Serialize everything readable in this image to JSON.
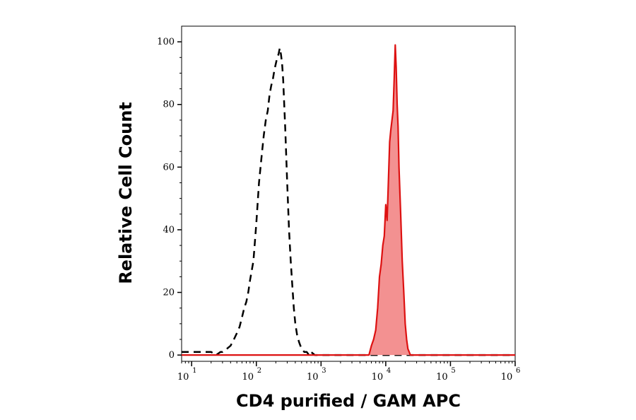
{
  "chart_data": {
    "type": "area",
    "title": "",
    "xlabel": "CD4 purified / GAM APC",
    "ylabel": "Relative Cell Count",
    "xscale": "log",
    "xlim": [
      7,
      1000000
    ],
    "ylim": [
      -2,
      105
    ],
    "grid": false,
    "legend": "none",
    "x_ticks": [
      {
        "base": "10",
        "exp": "1",
        "value": 10
      },
      {
        "base": "10",
        "exp": "2",
        "value": 100
      },
      {
        "base": "10",
        "exp": "3",
        "value": 1000
      },
      {
        "base": "10",
        "exp": "4",
        "value": 10000
      },
      {
        "base": "10",
        "exp": "5",
        "value": 100000
      },
      {
        "base": "10",
        "exp": "6",
        "value": 1000000
      }
    ],
    "y_ticks": [
      {
        "label": "0",
        "value": 0
      },
      {
        "label": "20",
        "value": 20
      },
      {
        "label": "40",
        "value": 40
      },
      {
        "label": "60",
        "value": 60
      },
      {
        "label": "80",
        "value": 80
      },
      {
        "label": "100",
        "value": 100
      }
    ],
    "series": [
      {
        "style": "dashed",
        "color": "#000000",
        "fill": "none",
        "x": [
          7,
          20,
          24,
          28,
          30,
          35,
          40,
          45,
          50,
          55,
          60,
          65,
          70,
          75,
          80,
          90,
          100,
          110,
          120,
          130,
          140,
          150,
          160,
          170,
          180,
          190,
          200,
          210,
          220,
          230,
          240,
          250,
          260,
          270,
          280,
          300,
          320,
          340,
          360,
          380,
          400,
          430,
          460,
          500,
          550,
          600,
          650,
          700,
          800,
          1000,
          1500,
          10000,
          1000000
        ],
        "y": [
          1,
          1,
          0,
          1,
          1,
          2,
          3,
          5,
          7,
          9,
          12,
          15,
          17,
          20,
          24,
          30,
          42,
          55,
          63,
          70,
          75,
          78,
          83,
          86,
          88,
          91,
          93,
          95,
          96,
          98,
          96,
          93,
          88,
          80,
          72,
          55,
          40,
          30,
          22,
          15,
          10,
          6,
          4,
          2,
          1,
          1,
          0,
          1,
          0,
          0,
          0,
          0,
          0
        ]
      },
      {
        "style": "solid",
        "color": "#dd1111",
        "fill": "#f39191",
        "x": [
          7,
          3000,
          5500,
          6000,
          6500,
          7000,
          7500,
          8000,
          8500,
          9000,
          9500,
          10000,
          10500,
          11000,
          11500,
          12000,
          12500,
          13000,
          13500,
          14000,
          14500,
          15000,
          15500,
          16000,
          17000,
          18000,
          19000,
          20000,
          21000,
          22000,
          23000,
          24000,
          25000,
          30000,
          1000000
        ],
        "y": [
          0,
          0,
          0,
          3,
          5,
          8,
          15,
          25,
          29,
          35,
          38,
          48,
          43,
          56,
          68,
          72,
          75,
          78,
          88,
          99,
          92,
          80,
          73,
          60,
          45,
          30,
          20,
          10,
          5,
          2,
          1,
          0,
          0,
          0,
          0
        ]
      }
    ]
  }
}
